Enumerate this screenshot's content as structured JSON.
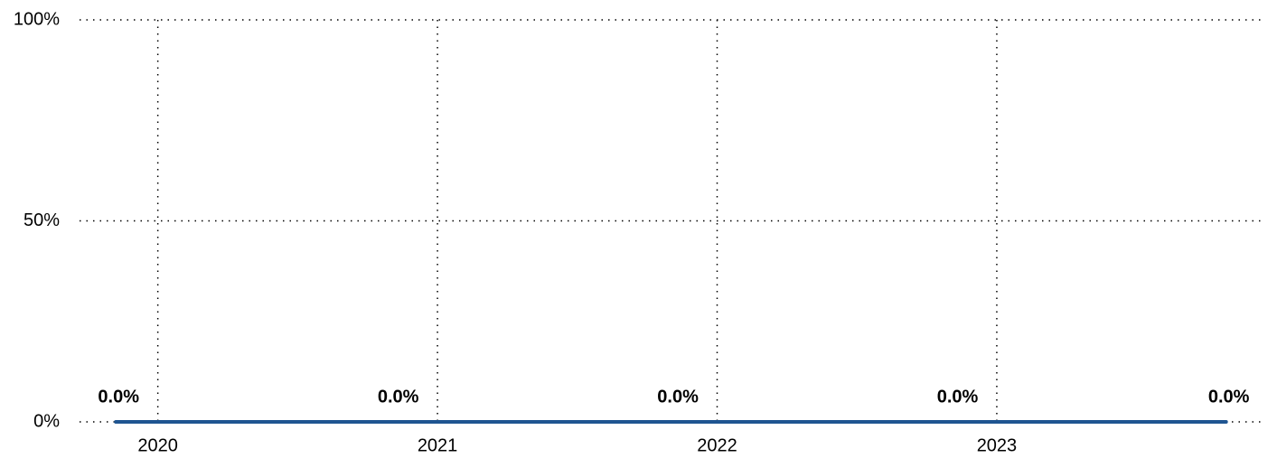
{
  "chart_data": {
    "type": "line",
    "x": [
      2019.85,
      2020.85,
      2021.85,
      2022.85,
      2023.82
    ],
    "values": [
      0,
      0,
      0,
      0,
      0
    ],
    "value_labels": [
      "0.0%",
      "0.0%",
      "0.0%",
      "0.0%",
      "0.0%"
    ],
    "color": "#1f5591",
    "xlim": [
      2019.72,
      2023.96
    ],
    "xticks": [
      2020,
      2021,
      2022,
      2023
    ],
    "ylim": [
      0,
      100
    ],
    "yticks": [
      {
        "value": 0,
        "label": "0%"
      },
      {
        "value": 50,
        "label": "50%"
      },
      {
        "value": 100,
        "label": "100%"
      }
    ],
    "grid": true
  }
}
